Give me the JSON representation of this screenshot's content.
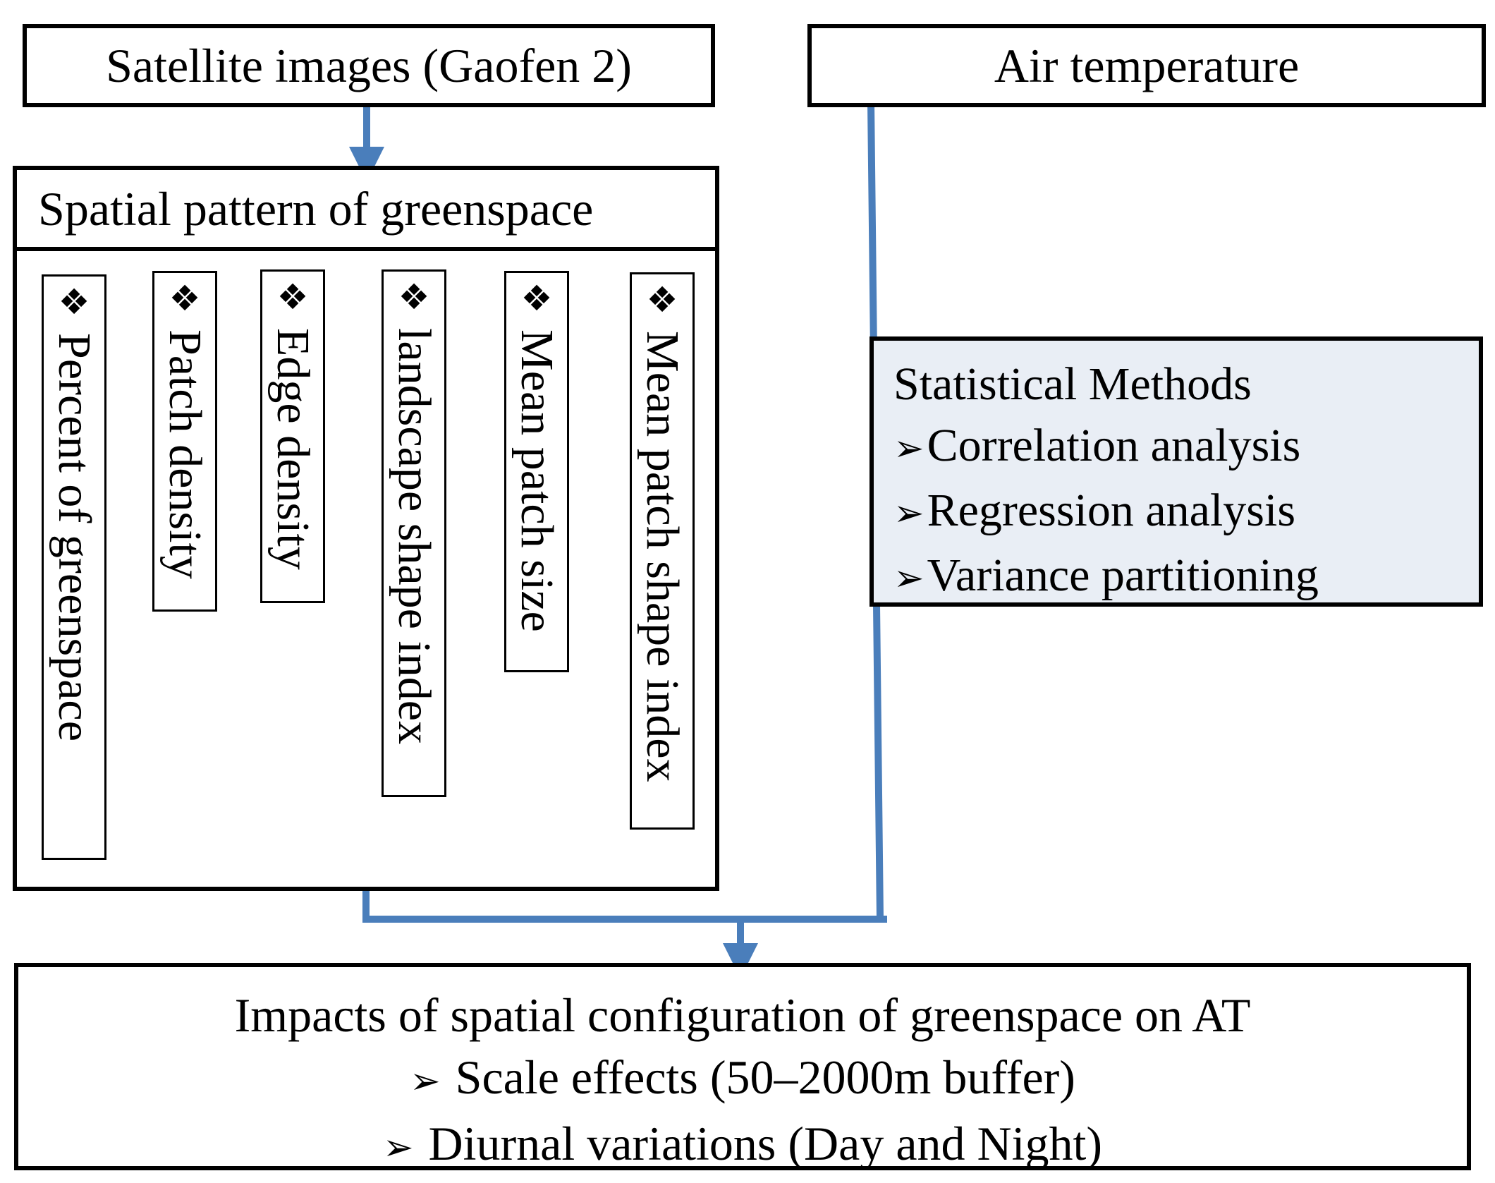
{
  "nodes": {
    "satellite": "Satellite images (Gaofen 2)",
    "air_temperature": "Air temperature",
    "spatial_pattern": "Spatial pattern of greenspace"
  },
  "metrics": [
    "Percent of greenspace",
    "Patch density",
    "Edge density",
    "landscape shape index",
    "Mean patch size",
    "Mean patch shape index"
  ],
  "metric_bullet": "❖",
  "statistical_methods": {
    "title": "Statistical Methods",
    "items": [
      "Correlation analysis",
      "Regression analysis",
      "Variance partitioning"
    ]
  },
  "impacts": {
    "title": "Impacts of spatial configuration of greenspace on AT",
    "items": [
      "Scale effects (50–2000m buffer)",
      "Diurnal variations (Day and Night)"
    ]
  },
  "list_arrow": "➢",
  "colors": {
    "connector": "#4a7ebb",
    "stats_fill": "#e9eef5",
    "border": "#000000"
  }
}
